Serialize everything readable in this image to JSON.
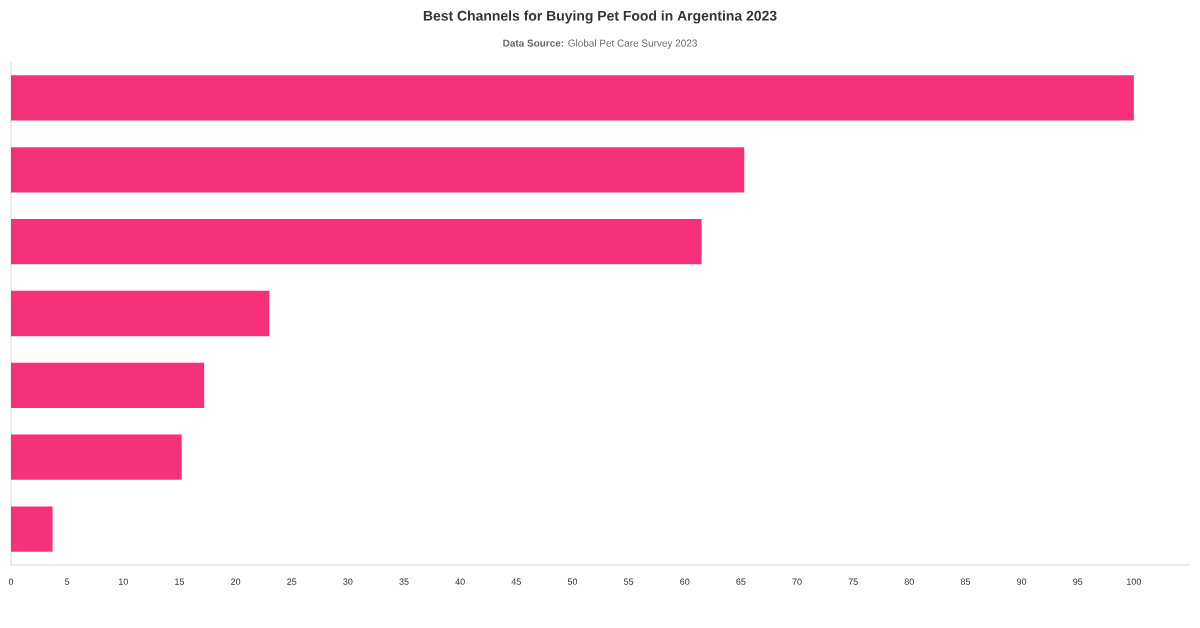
{
  "chart_data": {
    "type": "bar",
    "orientation": "horizontal",
    "title": "Best Channels for Buying Pet Food in Argentina 2023",
    "subtitle": "**Data Source:** Global Pet Care Survey 2023",
    "categories": [
      null,
      null,
      null,
      null,
      null,
      null,
      null
    ],
    "values": [
      100,
      65.3,
      61.5,
      23,
      17.2,
      15.2,
      3.7
    ],
    "color": "#f5317a",
    "xlim": [
      0,
      105
    ],
    "xticks": [
      0,
      5,
      10,
      15,
      20,
      25,
      30,
      35,
      40,
      45,
      50,
      55,
      60,
      65,
      70,
      75,
      80,
      85,
      90,
      95,
      100
    ]
  }
}
